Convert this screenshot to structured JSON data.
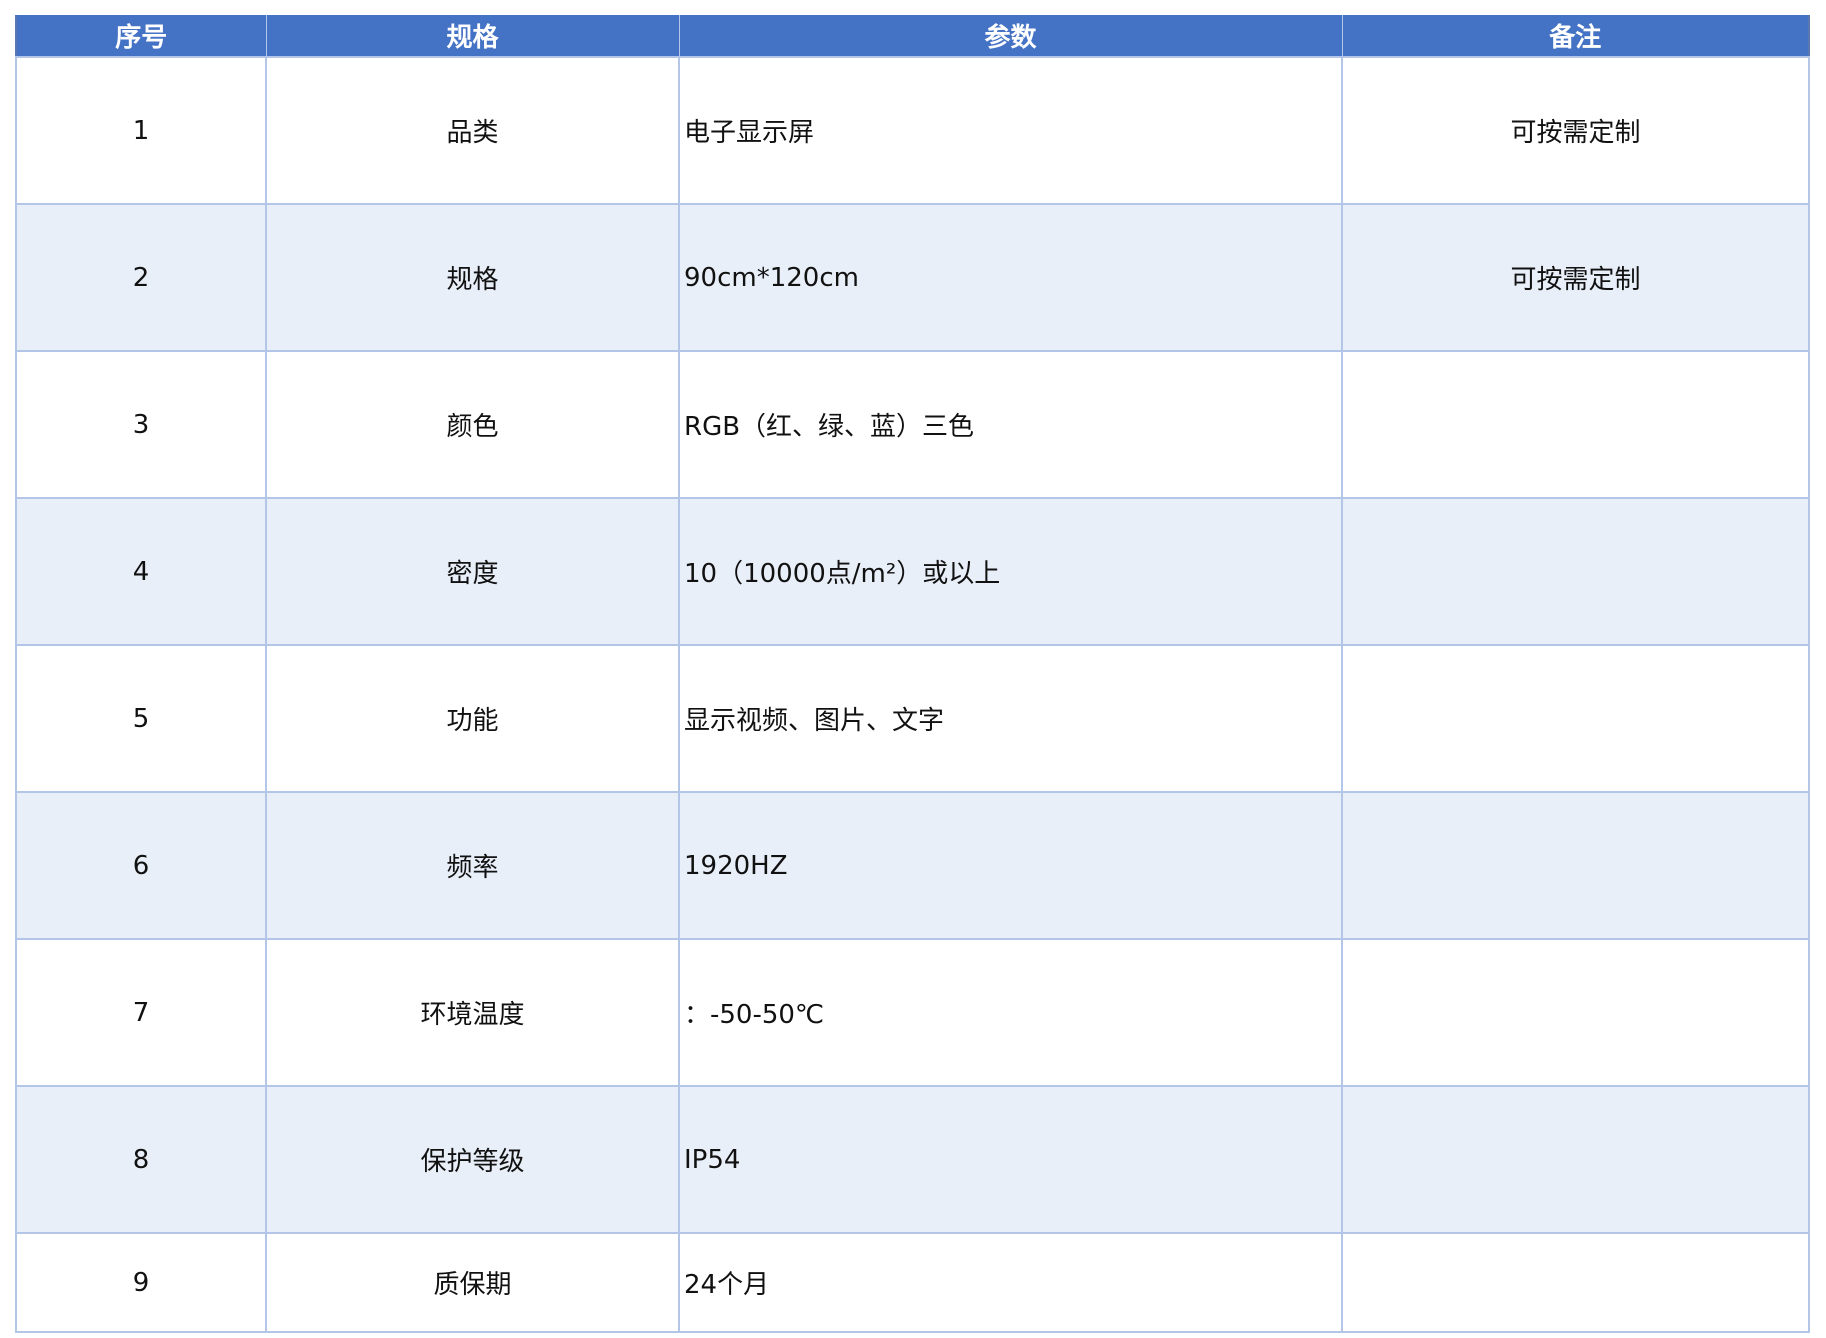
{
  "table": {
    "headers": [
      "序号",
      "规格",
      "参数",
      "备注"
    ],
    "rows": [
      {
        "no": "1",
        "spec": "品类",
        "param": "电子显示屏",
        "note": "可按需定制"
      },
      {
        "no": "2",
        "spec": "规格",
        "param": "90cm*120cm",
        "note": "可按需定制"
      },
      {
        "no": "3",
        "spec": "颜色",
        "param": "RGB（红、绿、蓝）三色",
        "note": ""
      },
      {
        "no": "4",
        "spec": "密度",
        "param": "10（10000点/m²）或以上",
        "note": ""
      },
      {
        "no": "5",
        "spec": "功能",
        "param": "显示视频、图片、文字",
        "note": ""
      },
      {
        "no": "6",
        "spec": "频率",
        "param": "1920HZ",
        "note": ""
      },
      {
        "no": "7",
        "spec": "环境温度",
        "param": "：-50-50℃",
        "note": ""
      },
      {
        "no": "8",
        "spec": "保护等级",
        "param": "IP54",
        "note": ""
      },
      {
        "no": "9",
        "spec": "质保期",
        "param": "24个月",
        "note": ""
      }
    ]
  },
  "colors": {
    "header": "#4472c4",
    "stripe": "#e9eff9",
    "border": "#b4c6e7"
  }
}
